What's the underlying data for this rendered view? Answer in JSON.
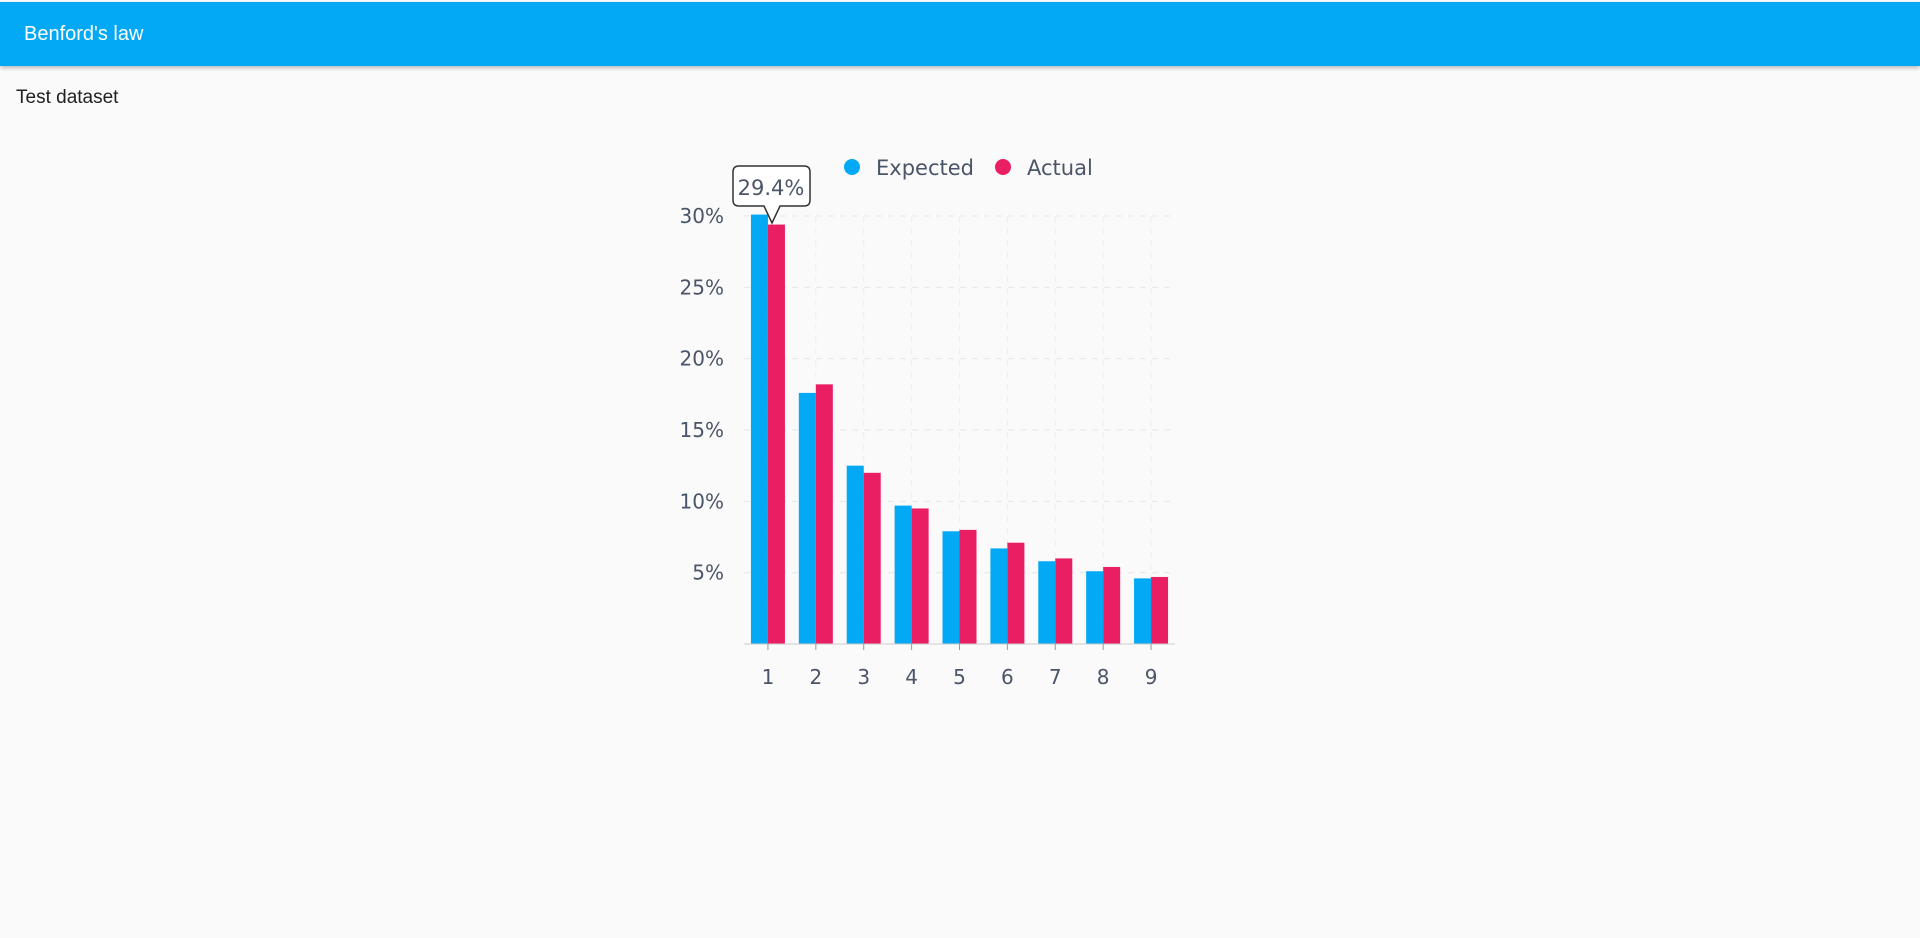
{
  "app": {
    "title": "Benford's law"
  },
  "dataset": {
    "title": "Test dataset"
  },
  "tooltip": {
    "text": "29.4%"
  },
  "colors": {
    "app_bar": "#03a9f4",
    "expected": "#03a9f4",
    "actual": "#e91e63",
    "text": "#4a5568"
  },
  "chart_data": {
    "type": "bar",
    "categories": [
      "1",
      "2",
      "3",
      "4",
      "5",
      "6",
      "7",
      "8",
      "9"
    ],
    "series": [
      {
        "name": "Expected",
        "values": [
          30.1,
          17.6,
          12.5,
          9.7,
          7.9,
          6.7,
          5.8,
          5.1,
          4.6
        ]
      },
      {
        "name": "Actual",
        "values": [
          29.4,
          18.2,
          12.0,
          9.5,
          8.0,
          7.1,
          6.0,
          5.4,
          4.7
        ]
      }
    ],
    "yticks": [
      "5%",
      "10%",
      "15%",
      "20%",
      "25%",
      "30%"
    ],
    "ytick_values": [
      5,
      10,
      15,
      20,
      25,
      30
    ],
    "ylim": [
      0,
      30
    ],
    "legend_position": "top",
    "grid": true
  }
}
